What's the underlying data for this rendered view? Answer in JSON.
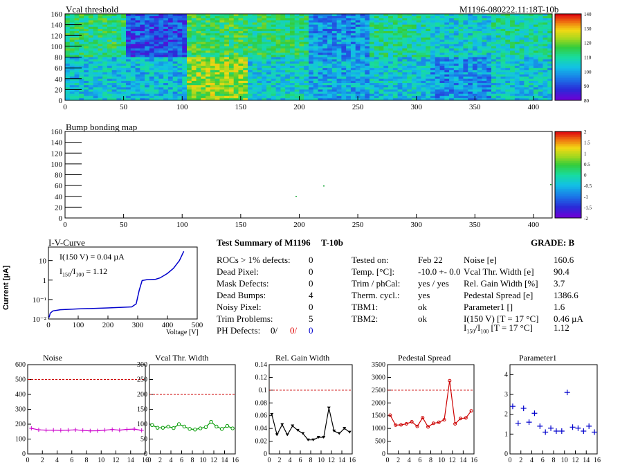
{
  "module_id": "M1196-080222.11:18T-10b",
  "vcal_map": {
    "title": "Vcal threshold",
    "x_ticks": [
      0,
      50,
      100,
      150,
      200,
      250,
      300,
      350,
      400
    ],
    "y_ticks": [
      0,
      20,
      40,
      60,
      80,
      100,
      120,
      140,
      160
    ],
    "palette_ticks": [
      80,
      90,
      100,
      110,
      120,
      130,
      140
    ]
  },
  "bump_map": {
    "title": "Bump bonding map",
    "x_ticks": [
      0,
      50,
      100,
      150,
      200,
      250,
      300,
      350,
      400
    ],
    "y_ticks": [
      0,
      20,
      40,
      60,
      80,
      100,
      120,
      140,
      160
    ],
    "palette_ticks": [
      "2",
      "1.5",
      "1",
      "0.5",
      "0",
      "-0.5",
      "-1",
      "-1.5",
      "-2"
    ]
  },
  "iv_curve": {
    "title": "I-V-Curve",
    "ylabel": "Current [µA]",
    "xlabel": "Voltage [V]",
    "x_ticks": [
      "0",
      "100",
      "200",
      "300",
      "400",
      "500"
    ],
    "y_ticks": [
      "10",
      "1",
      "10⁻¹",
      "10⁻²"
    ],
    "note1": "I(150 V) = 0.04 µA",
    "note2_main": "I",
    "note2_sub1": "150",
    "note2_sep": "/I",
    "note2_sub2": "100",
    "note2_val": " =  1.12"
  },
  "summary": {
    "title": "Test Summary of M1196",
    "title2": "T-10b",
    "grade": "GRADE:  B",
    "left": [
      {
        "label": "ROCs > 1% defects:",
        "value": "0"
      },
      {
        "label": "Dead Pixel:",
        "value": "0"
      },
      {
        "label": "Mask Defects:",
        "value": "0"
      },
      {
        "label": "Dead Bumps:",
        "value": "4"
      },
      {
        "label": "Noisy Pixel:",
        "value": "0"
      },
      {
        "label": "Trim Problems:",
        "value": "5"
      }
    ],
    "ph_label": "PH Defects:",
    "ph_values": [
      "0/",
      "0/",
      "0"
    ],
    "mid": [
      {
        "label": "Tested on:",
        "value": "Feb 22"
      },
      {
        "label": "Temp. [°C]:",
        "value": "-10.0 +- 0.0"
      },
      {
        "label": "Trim / phCal:",
        "value": "yes / yes"
      },
      {
        "label": "Therm. cycl.:",
        "value": "yes"
      },
      {
        "label": "TBM1:",
        "value": "ok"
      },
      {
        "label": "TBM2:",
        "value": "ok"
      }
    ],
    "right": [
      {
        "label": "Noise [e]",
        "value": "160.6"
      },
      {
        "label": "Vcal Thr. Width [e]",
        "value": "90.4"
      },
      {
        "label": "Rel. Gain Width [%]",
        "value": "3.7"
      },
      {
        "label": "Pedestal Spread [e]",
        "value": "1386.6"
      },
      {
        "label": "Parameter1 []",
        "value": "1.6"
      },
      {
        "label": "I(150 V) [T = 17 °C]",
        "value": "0.46 µA"
      }
    ],
    "ratio_label_main": "I",
    "ratio_sub1": "150",
    "ratio_sep": "/I",
    "ratio_sub2": "100",
    "ratio_tail": " [T = 17 °C]",
    "ratio_value": "1.12"
  },
  "chart_data": [
    {
      "type": "line",
      "title": "Noise",
      "x": [
        0,
        1,
        2,
        3,
        4,
        5,
        6,
        7,
        8,
        9,
        10,
        11,
        12,
        13,
        14,
        15
      ],
      "values": [
        172,
        162,
        160,
        160,
        158,
        160,
        162,
        158,
        155,
        156,
        160,
        164,
        160,
        165,
        167,
        158
      ],
      "ylim": [
        0,
        600
      ],
      "y_ticks": [
        0,
        100,
        200,
        300,
        400,
        500,
        600
      ],
      "cut": 500,
      "color": "#cc00cc",
      "marker": "plus"
    },
    {
      "type": "line",
      "title": "Vcal Thr. Width",
      "x": [
        0,
        1,
        2,
        3,
        4,
        5,
        6,
        7,
        8,
        9,
        10,
        11,
        12,
        13,
        14,
        15
      ],
      "values": [
        97,
        88,
        88,
        92,
        87,
        100,
        92,
        84,
        82,
        86,
        90,
        108,
        92,
        84,
        94,
        86
      ],
      "ylim": [
        0,
        300
      ],
      "y_ticks": [
        0,
        50,
        100,
        150,
        200,
        250,
        300
      ],
      "cut": 200,
      "color": "#009900",
      "marker": "circle"
    },
    {
      "type": "line",
      "title": "Rel. Gain Width",
      "x": [
        0,
        1,
        2,
        3,
        4,
        5,
        6,
        7,
        8,
        9,
        10,
        11,
        12,
        13,
        14,
        15
      ],
      "values": [
        0.062,
        0.03,
        0.046,
        0.03,
        0.044,
        0.037,
        0.032,
        0.022,
        0.022,
        0.026,
        0.026,
        0.072,
        0.036,
        0.032,
        0.04,
        0.034
      ],
      "ylim": [
        0,
        0.14
      ],
      "y_ticks": [
        0,
        0.02,
        0.04,
        0.06,
        0.08,
        0.1,
        0.12,
        0.14
      ],
      "cut": 0.1,
      "color": "#000000",
      "marker": "triangle"
    },
    {
      "type": "line",
      "title": "Pedestal Spread",
      "x": [
        0,
        1,
        2,
        3,
        4,
        5,
        6,
        7,
        8,
        9,
        10,
        11,
        12,
        13,
        14,
        15
      ],
      "values": [
        1520,
        1130,
        1140,
        1180,
        1260,
        1080,
        1420,
        1060,
        1200,
        1240,
        1340,
        2870,
        1180,
        1390,
        1410,
        1690
      ],
      "ylim": [
        0,
        3500
      ],
      "y_ticks": [
        0,
        500,
        1000,
        1500,
        2000,
        2500,
        3000,
        3500
      ],
      "cut": 2500,
      "color": "#cc0000",
      "marker": "star"
    },
    {
      "type": "scatter",
      "title": "Parameter1",
      "x": [
        0,
        1,
        2,
        3,
        4,
        5,
        6,
        7,
        8,
        9,
        10,
        11,
        12,
        13,
        14,
        15
      ],
      "values": [
        2.4,
        1.55,
        2.3,
        1.6,
        2.05,
        1.4,
        1.1,
        1.3,
        1.15,
        1.15,
        3.1,
        1.35,
        1.3,
        1.15,
        1.4,
        1.1
      ],
      "ylim": [
        0,
        4.5
      ],
      "y_ticks": [
        0,
        1,
        2,
        3,
        4
      ],
      "cut": null,
      "color": "#0000cc",
      "marker": "cross"
    }
  ]
}
